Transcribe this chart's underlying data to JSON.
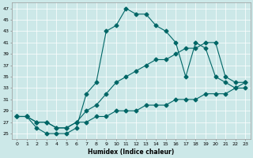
{
  "xlabel": "Humidex (Indice chaleur)",
  "bg_color": "#cce8e8",
  "line_color": "#006666",
  "xlim": [
    -0.5,
    23.5
  ],
  "ylim": [
    24,
    48
  ],
  "yticks": [
    25,
    27,
    29,
    31,
    33,
    35,
    37,
    39,
    41,
    43,
    45,
    47
  ],
  "xticks": [
    0,
    1,
    2,
    3,
    4,
    5,
    6,
    7,
    8,
    9,
    10,
    11,
    12,
    13,
    14,
    15,
    16,
    17,
    18,
    19,
    20,
    21,
    22,
    23
  ],
  "line1_x": [
    0,
    1,
    2,
    3,
    4,
    5,
    6,
    7,
    8,
    9,
    10,
    11,
    12,
    13,
    14,
    15,
    16,
    17,
    18,
    19,
    20,
    21,
    22,
    23
  ],
  "line1_y": [
    28,
    28,
    26,
    25,
    25,
    25,
    26,
    32,
    34,
    43,
    44,
    47,
    46,
    46,
    44,
    43,
    41,
    35,
    41,
    40,
    35,
    34,
    33,
    34
  ],
  "line2_x": [
    0,
    1,
    2,
    3,
    4,
    5,
    6,
    7,
    8,
    9,
    10,
    11,
    12,
    13,
    14,
    15,
    16,
    17,
    18,
    19,
    20,
    21,
    22,
    23
  ],
  "line2_y": [
    28,
    28,
    27,
    27,
    26,
    26,
    27,
    27,
    28,
    28,
    29,
    29,
    29,
    30,
    30,
    30,
    31,
    31,
    31,
    32,
    32,
    32,
    33,
    33
  ],
  "line3_x": [
    0,
    1,
    2,
    3,
    4,
    5,
    6,
    7,
    8,
    9,
    10,
    11,
    12,
    13,
    14,
    15,
    16,
    17,
    18,
    19,
    20,
    21,
    22,
    23
  ],
  "line3_y": [
    28,
    28,
    27,
    27,
    26,
    26,
    27,
    29,
    30,
    32,
    34,
    35,
    36,
    37,
    38,
    38,
    39,
    40,
    40,
    41,
    41,
    35,
    34,
    34
  ]
}
